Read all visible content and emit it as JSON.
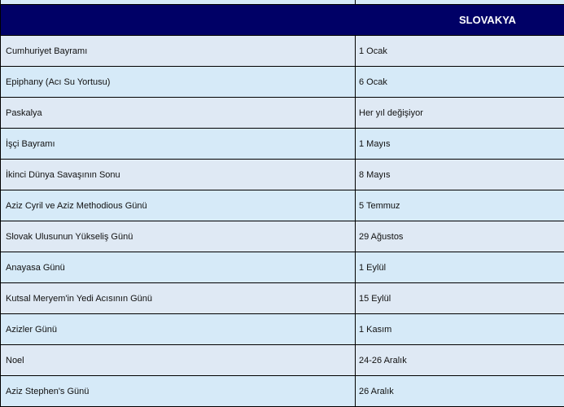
{
  "header": {
    "country": "SLOVAKYA"
  },
  "rows": [
    {
      "name": "Cumhuriyet Bayramı",
      "date": "1 Ocak"
    },
    {
      "name": "Epiphany (Acı Su Yortusu)",
      "date": "6 Ocak"
    },
    {
      "name": "Paskalya",
      "date": "Her yıl değişiyor"
    },
    {
      "name": "İşçi Bayramı",
      "date": "1 Mayıs"
    },
    {
      "name": "İkinci Dünya Savaşının Sonu",
      "date": "8 Mayıs"
    },
    {
      "name": "Aziz Cyril ve Aziz Methodious Günü",
      "date": "5 Temmuz"
    },
    {
      "name": "Slovak Ulusunun Yükseliş Günü",
      "date": "29 Ağustos"
    },
    {
      "name": "Anayasa Günü",
      "date": "1 Eylül"
    },
    {
      "name": "Kutsal Meryem'in Yedi Acısının Günü",
      "date": "15 Eylül"
    },
    {
      "name": "Azizler Günü",
      "date": "1 Kasım"
    },
    {
      "name": "Noel",
      "date": "24-26 Aralık"
    },
    {
      "name": "Aziz Stephen's Günü",
      "date": "26 Aralık"
    }
  ],
  "colors": {
    "header_bg": "#000066",
    "row_odd": "#dfe9f4",
    "row_even": "#d6eaf8"
  }
}
